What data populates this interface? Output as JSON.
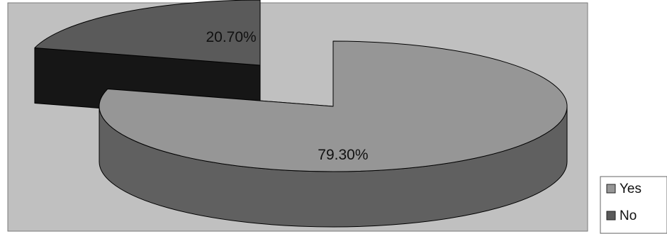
{
  "chart_data": {
    "type": "pie",
    "three_d": true,
    "title": "",
    "categories": [
      "Yes",
      "No"
    ],
    "values": [
      79.3,
      20.7
    ],
    "data_labels": [
      "79.30%",
      "20.70%"
    ],
    "exploded": "No",
    "legend": {
      "position": "right",
      "entries": [
        "Yes",
        "No"
      ]
    },
    "colors": {
      "Yes": {
        "top": "#969696",
        "side": "#606060"
      },
      "No": {
        "top": "#5a5a5a",
        "side": "#161616"
      },
      "plot_area": "#c0c0c0"
    }
  }
}
